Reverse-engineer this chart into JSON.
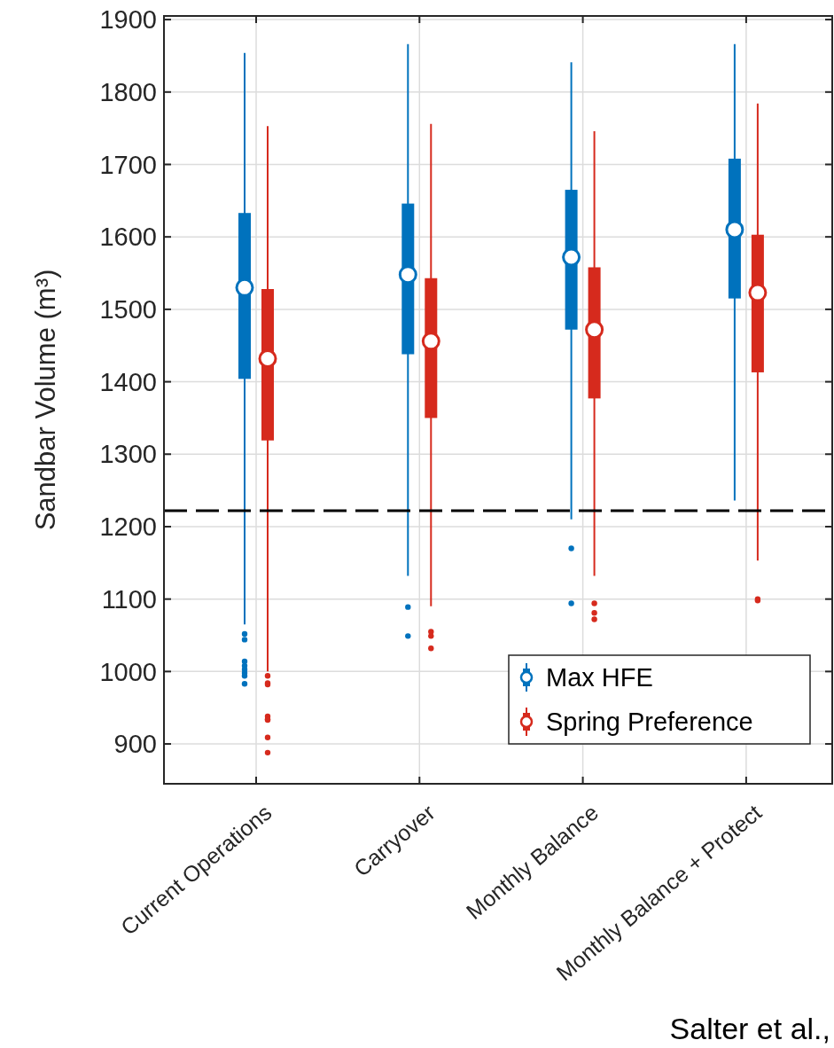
{
  "chart_data": {
    "type": "box",
    "ylabel": "Sandbar Volume (m³)",
    "categories": [
      "Current Operations",
      "Carryover",
      "Monthly Balance",
      "Monthly Balance + Protect"
    ],
    "series": [
      {
        "name": "Max HFE",
        "color": "#0072bd",
        "boxes": [
          {
            "low": 1065,
            "q1": 1404,
            "median": 1530,
            "q3": 1633,
            "high": 1854,
            "outliers": [
              1052,
              1044,
              1014,
              1008,
              1003,
              998,
              994,
              983
            ]
          },
          {
            "low": 1132,
            "q1": 1438,
            "median": 1548,
            "q3": 1646,
            "high": 1866,
            "outliers": [
              1089,
              1049
            ]
          },
          {
            "low": 1210,
            "q1": 1472,
            "median": 1572,
            "q3": 1665,
            "high": 1841,
            "outliers": [
              1170,
              1094
            ]
          },
          {
            "low": 1236,
            "q1": 1515,
            "median": 1610,
            "q3": 1708,
            "high": 1866
          }
        ]
      },
      {
        "name": "Spring Preference",
        "color": "#d62a1d",
        "boxes": [
          {
            "low": 1000,
            "q1": 1319,
            "median": 1432,
            "q3": 1528,
            "high": 1753,
            "outliers": [
              994,
              984,
              982,
              938,
              934,
              933,
              909,
              888
            ]
          },
          {
            "low": 1090,
            "q1": 1350,
            "median": 1456,
            "q3": 1543,
            "high": 1756,
            "outliers": [
              1055,
              1049,
              1032
            ]
          },
          {
            "low": 1132,
            "q1": 1377,
            "median": 1472,
            "q3": 1558,
            "high": 1746,
            "outliers": [
              1094,
              1081,
              1072
            ]
          },
          {
            "low": 1153,
            "q1": 1413,
            "median": 1523,
            "q3": 1603,
            "high": 1784,
            "outliers": [
              1100,
              1098
            ]
          }
        ]
      }
    ],
    "ylim": [
      845,
      1905
    ],
    "yticks": [
      900,
      1000,
      1100,
      1200,
      1300,
      1400,
      1500,
      1600,
      1700,
      1800,
      1900
    ],
    "grid": true,
    "legend": "bottom right",
    "ref_lines": [
      {
        "axis": "y",
        "value": 1222,
        "color": "#000000",
        "line_style": "dashed"
      }
    ],
    "annotations": [
      "Salter et al.,"
    ]
  }
}
